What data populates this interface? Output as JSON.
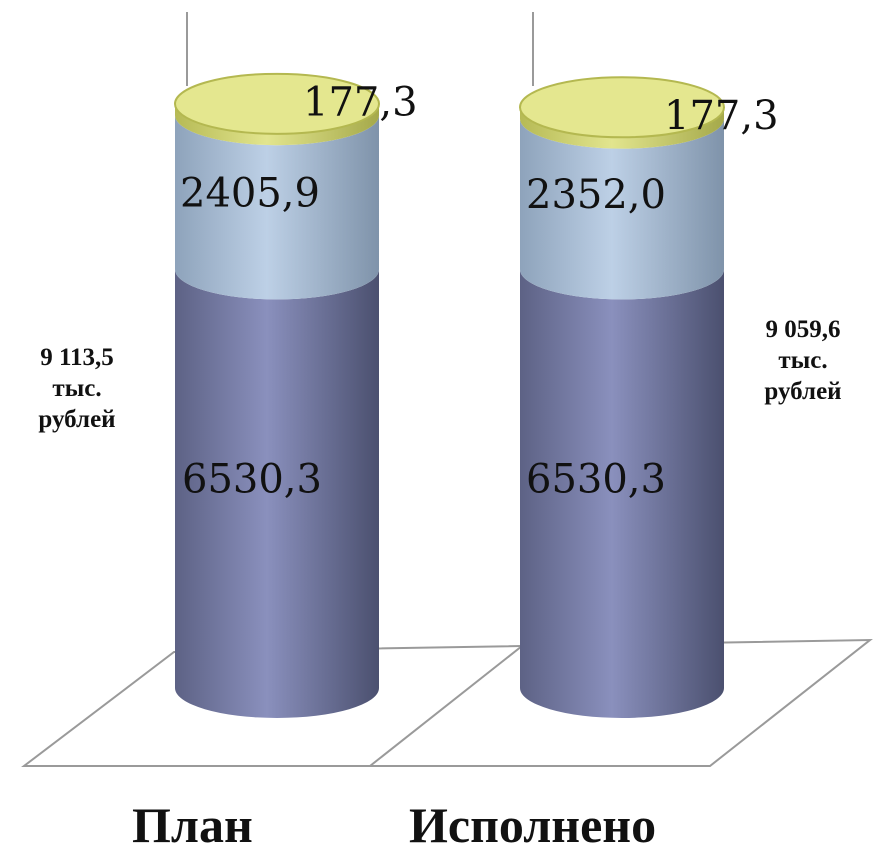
{
  "chart_data": {
    "type": "bar",
    "stacked": true,
    "style": "3d-cylinder",
    "categories": [
      "План",
      "Исполнено"
    ],
    "series": [
      {
        "values": [
          6530.3,
          6530.3
        ],
        "labels": [
          "6530,3",
          "6530,3"
        ],
        "color": "#7c82ad"
      },
      {
        "values": [
          2405.9,
          2352.0
        ],
        "labels": [
          "2405,9",
          "2352,0"
        ],
        "color": "#a9bfd8"
      },
      {
        "values": [
          177.3,
          177.3
        ],
        "labels": [
          "177,3",
          "177,3"
        ],
        "color": "#d8dc7a"
      }
    ],
    "totals": [
      {
        "value": "9 113,5",
        "unit_1": "тыс.",
        "unit_2": "рублей"
      },
      {
        "value": "9 059,6",
        "unit_1": "тыс.",
        "unit_2": "рублей"
      }
    ],
    "legend": "none",
    "grid": false
  }
}
